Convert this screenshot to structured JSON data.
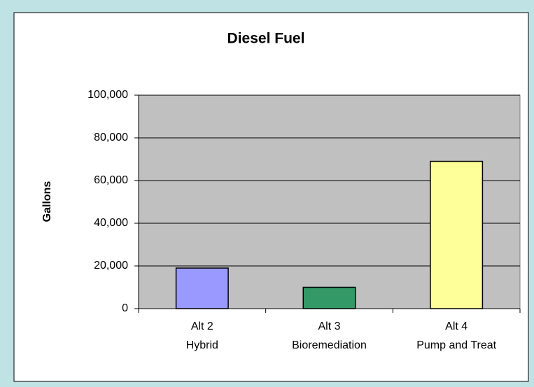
{
  "chart_data": {
    "type": "bar",
    "title": "Diesel Fuel",
    "y_label": "Gallons",
    "categories": [
      [
        "Alt 2",
        "Hybrid"
      ],
      [
        "Alt 3",
        "Bioremediation"
      ],
      [
        "Alt 4",
        "Pump and Treat"
      ]
    ],
    "values": [
      19000,
      10000,
      69000
    ],
    "colors": [
      "#9999ff",
      "#339966",
      "#ffff99"
    ],
    "ylim": [
      0,
      100000
    ],
    "yticks": [
      0,
      {
        "value": 20000,
        "label": "20,000"
      },
      {
        "value": 40000,
        "label": "40,000"
      },
      {
        "value": 60000,
        "label": "60,000"
      },
      {
        "value": 80000,
        "label": "80,000"
      },
      {
        "value": 100000,
        "label": "100,000"
      }
    ],
    "grid": true
  }
}
